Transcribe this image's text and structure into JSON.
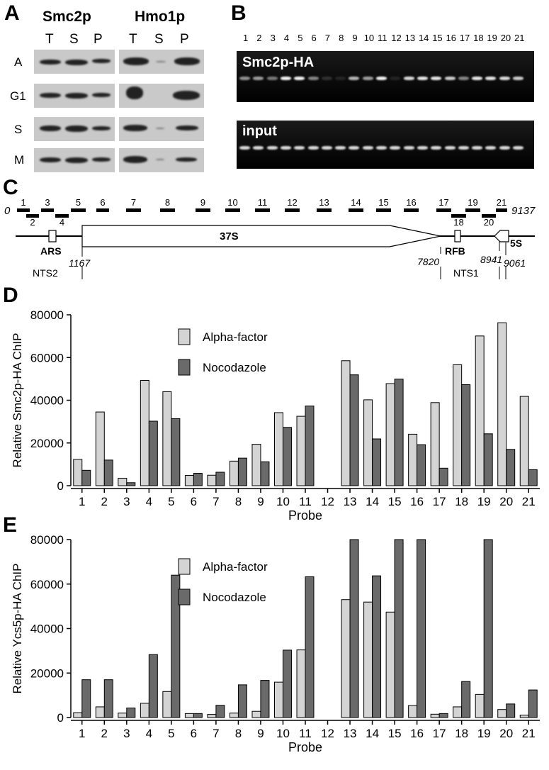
{
  "panelA": {
    "letter": "A",
    "proteins": [
      "Smc2p",
      "Hmo1p"
    ],
    "fractions": [
      "T",
      "S",
      "P",
      "T",
      "S",
      "P"
    ],
    "rows": [
      "A",
      "G1",
      "S",
      "M"
    ]
  },
  "panelB": {
    "letter": "B",
    "lanes": [
      "1",
      "2",
      "3",
      "4",
      "5",
      "6",
      "7",
      "8",
      "9",
      "10",
      "11",
      "12",
      "13",
      "14",
      "15",
      "16",
      "17",
      "18",
      "19",
      "20",
      "21"
    ],
    "gel_top_label": "Smc2p-HA",
    "gel_bottom_label": "input"
  },
  "panelC": {
    "letter": "C",
    "start": "0",
    "end": "9137",
    "probes": [
      "1",
      "2",
      "3",
      "4",
      "5",
      "6",
      "7",
      "8",
      "9",
      "10",
      "11",
      "12",
      "13",
      "14",
      "15",
      "16",
      "17",
      "18",
      "19",
      "20",
      "21"
    ],
    "features": {
      "ars": "ARS",
      "gene": "37S",
      "rfb": "RFB",
      "five_s": "5S"
    },
    "coords": {
      "c1167": "1167",
      "c7820": "7820",
      "c8941": "8941",
      "c9061": "9061"
    },
    "regions": {
      "nts2": "NTS2",
      "nts1": "NTS1"
    }
  },
  "chart_data": [
    {
      "type": "bar",
      "panel": "D",
      "ylabel": "Relative Smc2p-HA ChIP",
      "xlabel": "Probe",
      "ylim": [
        0,
        80000
      ],
      "yticks": [
        "0",
        "20000",
        "40000",
        "60000",
        "80000"
      ],
      "categories": [
        "1",
        "2",
        "3",
        "4",
        "5",
        "6",
        "7",
        "8",
        "9",
        "10",
        "11",
        "12",
        "13",
        "14",
        "15",
        "16",
        "17",
        "18",
        "19",
        "20",
        "21"
      ],
      "series": [
        {
          "name": "Alpha-factor",
          "color": "#d4d4d4",
          "values": [
            12300,
            34500,
            3500,
            49300,
            44000,
            4800,
            4900,
            11500,
            19400,
            34200,
            32500,
            0,
            58500,
            40200,
            47800,
            24100,
            38900,
            56600,
            70100,
            76300,
            41800
          ]
        },
        {
          "name": "Nocodazole",
          "color": "#6a6a6a",
          "values": [
            7200,
            12000,
            1400,
            30200,
            31400,
            5800,
            6300,
            12900,
            11200,
            27300,
            37300,
            0,
            51900,
            21900,
            49900,
            19200,
            8200,
            47300,
            24300,
            17000,
            7500
          ]
        }
      ],
      "legend": "top-left"
    },
    {
      "type": "bar",
      "panel": "E",
      "ylabel": "Relative Ycs5p-HA ChIP",
      "xlabel": "Probe",
      "ylim": [
        0,
        80000
      ],
      "yticks": [
        "0",
        "20000",
        "40000",
        "60000",
        "80000"
      ],
      "categories": [
        "1",
        "2",
        "3",
        "4",
        "5",
        "6",
        "7",
        "8",
        "9",
        "10",
        "11",
        "12",
        "13",
        "14",
        "15",
        "16",
        "17",
        "18",
        "19",
        "20",
        "21"
      ],
      "series": [
        {
          "name": "Alpha-factor",
          "color": "#d4d4d4",
          "values": [
            2200,
            4800,
            2000,
            6400,
            11700,
            1800,
            1400,
            2000,
            2800,
            15900,
            30400,
            0,
            53000,
            51900,
            47400,
            5400,
            1500,
            4800,
            10400,
            3600,
            1100
          ]
        },
        {
          "name": "Nocodazole",
          "color": "#6a6a6a",
          "values": [
            17000,
            17000,
            4300,
            28300,
            64000,
            1800,
            5500,
            14700,
            16700,
            30300,
            63300,
            0,
            80000,
            63700,
            80000,
            80000,
            1800,
            16200,
            80000,
            6100,
            12400
          ]
        }
      ],
      "legend": "top-left"
    }
  ],
  "panelD_letter": "D",
  "panelE_letter": "E"
}
